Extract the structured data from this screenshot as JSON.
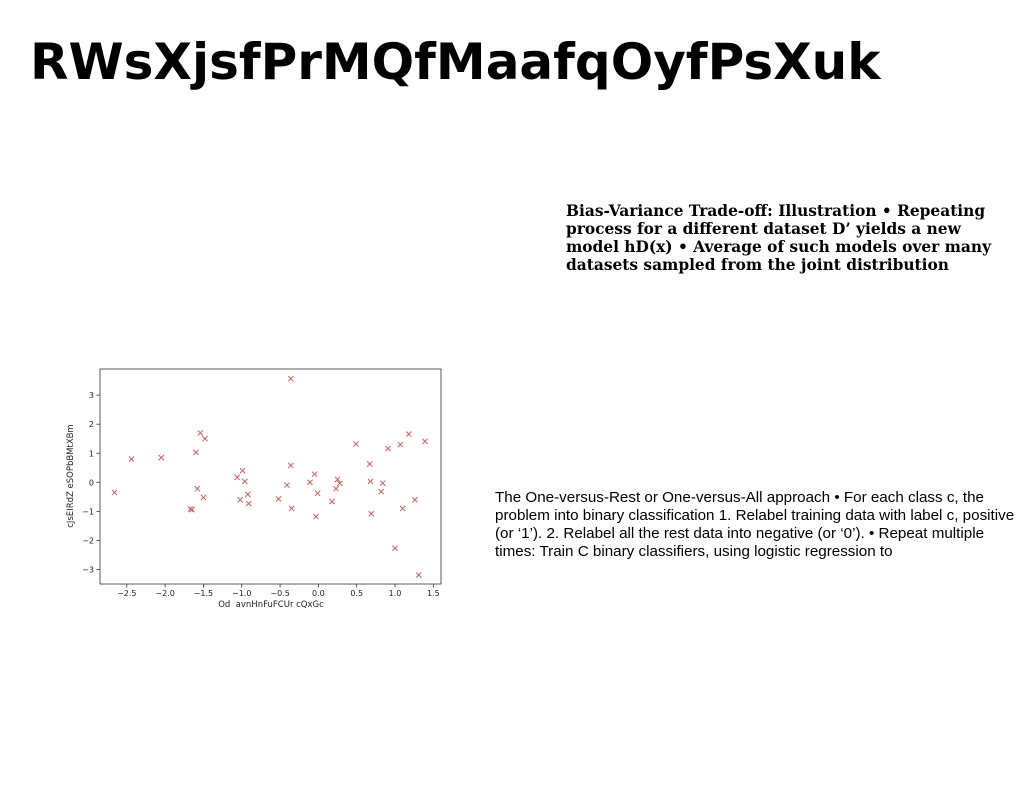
{
  "page": {
    "title": "RWsXjsfPrMQfMaafqOyfPsXuk"
  },
  "text_blocks": {
    "bias_variance": "Bias-Variance Trade-off: Illustration • Repeating process for a different dataset D’ yields a new model hD(x) • Average of such models over many datasets sampled from the joint distribution",
    "one_vs_rest": "The One-versus-Rest or One-versus-All approach • For each class c, the problem into binary classification 1. Relabel training data with label c, positive (or ‘1’). 2. Relabel all the rest data into negative (or ‘0’). • Repeat multiple times: Train C binary classifiers, using logistic regression to"
  },
  "chart_data": {
    "type": "scatter",
    "title": "",
    "xlabel": "Od  avnHnFuFCUr cQxGc",
    "ylabel": "cJsEIRdZ eSOPbBMtXBm",
    "xlim": [
      -2.85,
      1.6
    ],
    "ylim": [
      -3.5,
      3.9
    ],
    "xticks": [
      -2.5,
      -2.0,
      -1.5,
      -1.0,
      -0.5,
      0.0,
      0.5,
      1.0,
      1.5
    ],
    "xtick_labels": [
      "−2.5",
      "−2.0",
      "−1.5",
      "−1.0",
      "−0.5",
      "0.0",
      "0.5",
      "1.0",
      "1.5"
    ],
    "yticks": [
      3,
      2,
      1,
      0,
      -1,
      -2,
      -3
    ],
    "ytick_labels": [
      "3",
      "2",
      "1",
      "0",
      "−1",
      "−2",
      "−3"
    ],
    "grid": false,
    "marker": "x",
    "color": "#c9625f",
    "points": [
      {
        "x": -2.66,
        "y": -0.35
      },
      {
        "x": -2.44,
        "y": 0.8
      },
      {
        "x": -2.05,
        "y": 0.85
      },
      {
        "x": -1.67,
        "y": -0.92
      },
      {
        "x": -1.65,
        "y": -0.94
      },
      {
        "x": -1.6,
        "y": 1.03
      },
      {
        "x": -1.58,
        "y": -0.22
      },
      {
        "x": -1.54,
        "y": 1.7
      },
      {
        "x": -1.5,
        "y": -0.52
      },
      {
        "x": -1.48,
        "y": 1.5
      },
      {
        "x": -1.06,
        "y": 0.17
      },
      {
        "x": -1.02,
        "y": -0.6
      },
      {
        "x": -0.99,
        "y": 0.4
      },
      {
        "x": -0.96,
        "y": 0.03
      },
      {
        "x": -0.92,
        "y": -0.42
      },
      {
        "x": -0.91,
        "y": -0.73
      },
      {
        "x": -0.52,
        "y": -0.57
      },
      {
        "x": -0.41,
        "y": -0.1
      },
      {
        "x": -0.36,
        "y": 3.57
      },
      {
        "x": -0.36,
        "y": 0.58
      },
      {
        "x": -0.35,
        "y": -0.9
      },
      {
        "x": -0.11,
        "y": 0.0
      },
      {
        "x": -0.05,
        "y": 0.28
      },
      {
        "x": -0.03,
        "y": -1.18
      },
      {
        "x": -0.01,
        "y": -0.38
      },
      {
        "x": 0.18,
        "y": -0.66
      },
      {
        "x": 0.23,
        "y": -0.22
      },
      {
        "x": 0.25,
        "y": 0.1
      },
      {
        "x": 0.28,
        "y": -0.04
      },
      {
        "x": 0.49,
        "y": 1.32
      },
      {
        "x": 0.67,
        "y": 0.63
      },
      {
        "x": 0.68,
        "y": 0.03
      },
      {
        "x": 0.69,
        "y": -1.08
      },
      {
        "x": 0.82,
        "y": -0.32
      },
      {
        "x": 0.84,
        "y": -0.03
      },
      {
        "x": 0.91,
        "y": 1.16
      },
      {
        "x": 1.0,
        "y": -2.27
      },
      {
        "x": 1.07,
        "y": 1.3
      },
      {
        "x": 1.1,
        "y": -0.9
      },
      {
        "x": 1.18,
        "y": 1.66
      },
      {
        "x": 1.26,
        "y": -0.6
      },
      {
        "x": 1.31,
        "y": -3.19
      },
      {
        "x": 1.39,
        "y": 1.41
      }
    ]
  }
}
